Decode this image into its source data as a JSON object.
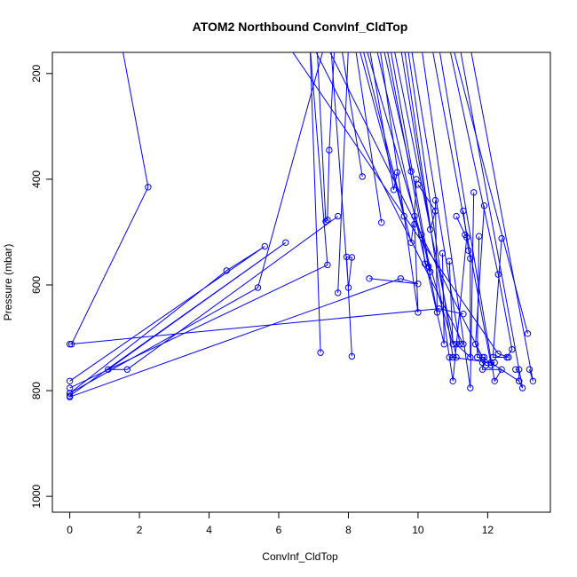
{
  "chart_data": {
    "type": "line",
    "title": "ATOM2 Northbound ConvInf_CldTop",
    "xlabel": "ConvInf_CldTop",
    "ylabel": "Pressure (mbar)",
    "xlim": [
      -0.5,
      13.8
    ],
    "ylim": [
      1030,
      160
    ],
    "y_reversed": true,
    "x_ticks": [
      0,
      2,
      4,
      6,
      8,
      10,
      12
    ],
    "y_ticks": [
      200,
      400,
      600,
      800,
      1000
    ],
    "grid": false,
    "legend": "none",
    "series_color": "#0000ff",
    "series": [
      {
        "points": [
          [
            1.5,
            150
          ],
          [
            2.25,
            415
          ],
          [
            0.05,
            712
          ]
        ]
      },
      {
        "points": [
          [
            0.0,
            712
          ],
          [
            10.6,
            645
          ],
          [
            11.3,
            655
          ]
        ]
      },
      {
        "points": [
          [
            0.0,
            782
          ],
          [
            5.6,
            527
          ],
          [
            4.5,
            573
          ],
          [
            0.0,
            805
          ]
        ]
      },
      {
        "points": [
          [
            0.0,
            810
          ],
          [
            6.2,
            520
          ],
          [
            1.1,
            760
          ],
          [
            1.65,
            760
          ],
          [
            7.7,
            470
          ]
        ]
      },
      {
        "points": [
          [
            0.0,
            812
          ],
          [
            9.5,
            588
          ],
          [
            10.0,
            598
          ],
          [
            8.6,
            588
          ]
        ]
      },
      {
        "points": [
          [
            0.0,
            795
          ],
          [
            7.4,
            562
          ],
          [
            6.9,
            150
          ]
        ]
      },
      {
        "points": [
          [
            0.0,
            805
          ],
          [
            5.4,
            605
          ],
          [
            7.3,
            150
          ]
        ]
      },
      {
        "points": [
          [
            7.1,
            150
          ],
          [
            7.35,
            480
          ],
          [
            7.4,
            477
          ],
          [
            7.45,
            345
          ],
          [
            7.6,
            150
          ]
        ]
      },
      {
        "points": [
          [
            7.2,
            728
          ],
          [
            6.9,
            150
          ]
        ]
      },
      {
        "points": [
          [
            8.1,
            735
          ],
          [
            7.95,
            547
          ],
          [
            8.1,
            548
          ],
          [
            8.0,
            605
          ],
          [
            7.5,
            150
          ]
        ]
      },
      {
        "points": [
          [
            7.7,
            615
          ],
          [
            8.0,
            150
          ]
        ]
      },
      {
        "points": [
          [
            8.4,
            395
          ],
          [
            7.8,
            150
          ]
        ]
      },
      {
        "points": [
          [
            8.95,
            482
          ],
          [
            8.2,
            150
          ]
        ]
      },
      {
        "points": [
          [
            9.4,
            387
          ],
          [
            9.3,
            420
          ],
          [
            8.6,
            150
          ]
        ]
      },
      {
        "points": [
          [
            9.6,
            470
          ],
          [
            8.3,
            150
          ]
        ]
      },
      {
        "points": [
          [
            9.8,
            385
          ],
          [
            9.0,
            150
          ]
        ]
      },
      {
        "points": [
          [
            9.95,
            400
          ],
          [
            9.9,
            470
          ],
          [
            9.8,
            520
          ],
          [
            8.4,
            150
          ]
        ]
      },
      {
        "points": [
          [
            9.9,
            485
          ],
          [
            10.0,
            652
          ],
          [
            8.9,
            150
          ]
        ]
      },
      {
        "points": [
          [
            10.1,
            505
          ],
          [
            10.2,
            560
          ],
          [
            10.3,
            565
          ],
          [
            10.35,
            575
          ],
          [
            9.2,
            150
          ]
        ]
      },
      {
        "points": [
          [
            10.0,
            410
          ],
          [
            10.5,
            460
          ],
          [
            10.35,
            495
          ],
          [
            9.5,
            150
          ]
        ]
      },
      {
        "points": [
          [
            10.5,
            440
          ],
          [
            10.55,
            652
          ],
          [
            9.1,
            150
          ]
        ]
      },
      {
        "points": [
          [
            10.7,
            540
          ],
          [
            10.75,
            712
          ],
          [
            8.8,
            150
          ]
        ]
      },
      {
        "points": [
          [
            10.9,
            555
          ],
          [
            11.0,
            712
          ],
          [
            8.5,
            150
          ]
        ]
      },
      {
        "points": [
          [
            10.9,
            737
          ],
          [
            11.1,
            737
          ],
          [
            9.3,
            150
          ]
        ]
      },
      {
        "points": [
          [
            11.1,
            470
          ],
          [
            11.35,
            505
          ],
          [
            11.4,
            510
          ],
          [
            11.0,
            782
          ],
          [
            9.6,
            150
          ]
        ]
      },
      {
        "points": [
          [
            11.3,
            460
          ],
          [
            11.45,
            535
          ],
          [
            11.5,
            550
          ],
          [
            11.5,
            737
          ],
          [
            11.1,
            712
          ],
          [
            11.2,
            712
          ],
          [
            9.8,
            150
          ]
        ]
      },
      {
        "points": [
          [
            11.6,
            425
          ],
          [
            11.5,
            795
          ],
          [
            10.1,
            150
          ]
        ]
      },
      {
        "points": [
          [
            11.9,
            450
          ],
          [
            11.65,
            712
          ],
          [
            11.85,
            747
          ],
          [
            11.95,
            752
          ],
          [
            12.1,
            752
          ],
          [
            10.4,
            150
          ]
        ]
      },
      {
        "points": [
          [
            11.75,
            508
          ],
          [
            11.7,
            737
          ],
          [
            11.9,
            737
          ],
          [
            11.85,
            760
          ],
          [
            12.4,
            760
          ],
          [
            12.2,
            782
          ],
          [
            10.6,
            150
          ]
        ]
      },
      {
        "points": [
          [
            12.4,
            512
          ],
          [
            12.15,
            737
          ],
          [
            12.55,
            737
          ],
          [
            12.7,
            722
          ],
          [
            12.3,
            580
          ],
          [
            10.9,
            150
          ]
        ]
      },
      {
        "points": [
          [
            12.8,
            760
          ],
          [
            12.9,
            760
          ],
          [
            12.9,
            782
          ],
          [
            13.0,
            795
          ],
          [
            11.2,
            150
          ]
        ]
      },
      {
        "points": [
          [
            13.15,
            692
          ],
          [
            11.0,
            150
          ]
        ]
      },
      {
        "points": [
          [
            13.2,
            760
          ],
          [
            13.3,
            782
          ],
          [
            11.5,
            150
          ]
        ]
      },
      {
        "points": [
          [
            12.2,
            747
          ],
          [
            12.1,
            747
          ],
          [
            11.0,
            737
          ],
          [
            9.7,
            150
          ]
        ]
      },
      {
        "points": [
          [
            11.3,
            712
          ],
          [
            7.0,
            150
          ]
        ]
      },
      {
        "points": [
          [
            12.6,
            737
          ],
          [
            12.3,
            730
          ],
          [
            6.3,
            150
          ]
        ]
      },
      {
        "points": [
          [
            12.9,
            782
          ],
          [
            11.85,
            737
          ],
          [
            7.4,
            150
          ]
        ]
      }
    ]
  }
}
